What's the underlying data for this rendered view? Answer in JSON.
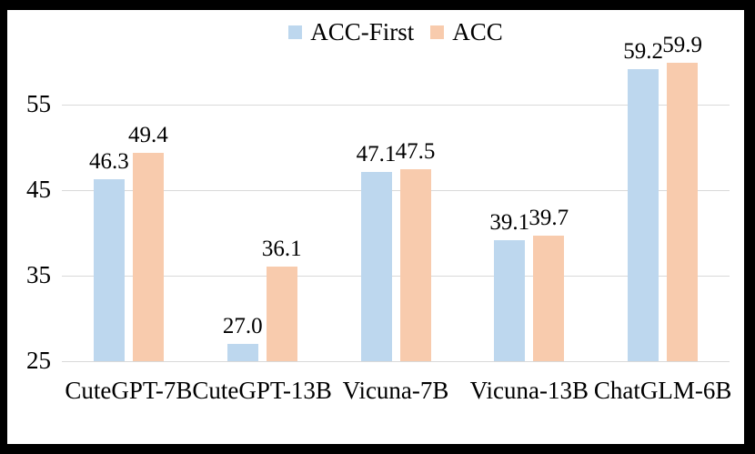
{
  "chart_data": {
    "type": "bar",
    "categories": [
      "CuteGPT-7B",
      "CuteGPT-13B",
      "Vicuna-7B",
      "Vicuna-13B",
      "ChatGLM-6B"
    ],
    "series": [
      {
        "name": "ACC-First",
        "color": "#BDD7EE",
        "values": [
          46.3,
          27.0,
          47.1,
          39.1,
          59.2
        ]
      },
      {
        "name": "ACC",
        "color": "#F8CBAD",
        "values": [
          49.4,
          36.1,
          47.5,
          39.7,
          59.9
        ]
      }
    ],
    "yticks": [
      25,
      35,
      45,
      55
    ],
    "ylim": [
      25,
      62
    ],
    "grid": true,
    "legend_position": "top-center",
    "value_labels": {
      "ACC-First": [
        "46.3",
        "27.0",
        "47.1",
        "39.1",
        "59.2"
      ],
      "ACC": [
        "49.4",
        "36.1",
        "47.5",
        "39.7",
        "59.9"
      ]
    }
  },
  "colors": {
    "bar_blue": "#BDD7EE",
    "bar_orange": "#F8CBAD",
    "gridline": "#D9D9D9",
    "text": "#000000",
    "panel_background": "#FFFFFF",
    "frame": "#000000"
  }
}
